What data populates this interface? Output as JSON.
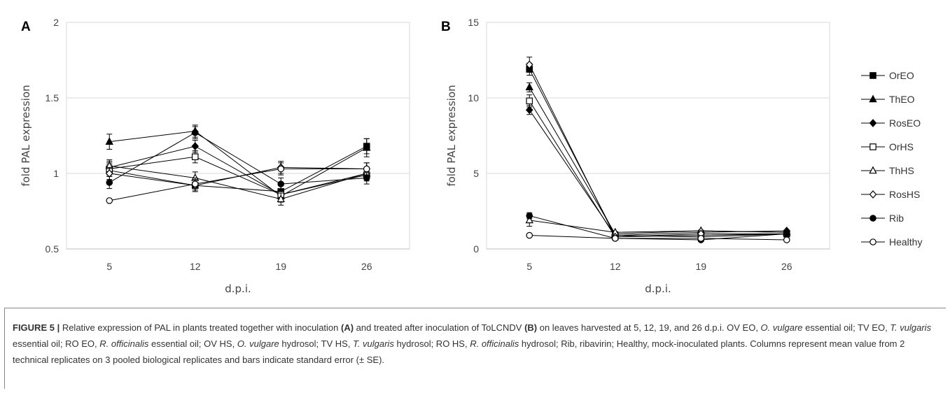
{
  "chart_data": [
    {
      "panel_label": "A",
      "type": "line",
      "xlabel": "d.p.i.",
      "ylabel": "fold PAL expression",
      "categories": [
        "5",
        "12",
        "19",
        "26"
      ],
      "ylim": [
        0.5,
        2
      ],
      "yticks": [
        "0.5",
        "1",
        "1.5",
        "2"
      ],
      "grid": true,
      "series": [
        {
          "name": "OrEO",
          "marker": "square-filled",
          "values": [
            1.02,
            0.92,
            0.88,
            1.18
          ],
          "errors": [
            0.04,
            0.04,
            0.04,
            0.05
          ]
        },
        {
          "name": "ThEO",
          "marker": "triangle-filled",
          "values": [
            1.21,
            1.28,
            0.85,
            1.17
          ],
          "errors": [
            0.05,
            0.04,
            0.04,
            0.06
          ]
        },
        {
          "name": "RosEO",
          "marker": "diamond-filled",
          "values": [
            1.04,
            1.18,
            0.86,
            1.0
          ],
          "errors": [
            0.04,
            0.04,
            0.03,
            0.04
          ]
        },
        {
          "name": "OrHS",
          "marker": "square-open",
          "values": [
            1.03,
            1.11,
            0.86,
            0.99
          ],
          "errors": [
            0.04,
            0.04,
            0.03,
            0.04
          ]
        },
        {
          "name": "ThHS",
          "marker": "triangle-open",
          "values": [
            1.05,
            0.97,
            0.83,
            1.0
          ],
          "errors": [
            0.04,
            0.04,
            0.04,
            0.04
          ]
        },
        {
          "name": "RosHS",
          "marker": "diamond-open",
          "values": [
            1.0,
            0.92,
            1.04,
            1.03
          ],
          "errors": [
            0.04,
            0.04,
            0.04,
            0.04
          ]
        },
        {
          "name": "Rib",
          "marker": "circle-filled",
          "values": [
            0.94,
            1.27,
            0.93,
            0.97
          ],
          "errors": [
            0.04,
            0.04,
            0.04,
            0.04
          ]
        },
        {
          "name": "Healthy",
          "marker": "circle-open",
          "values": [
            0.82,
            0.93,
            1.03,
            1.03
          ],
          "errors": [
            0.0,
            0.04,
            0.04,
            0.04
          ]
        }
      ]
    },
    {
      "panel_label": "B",
      "type": "line",
      "xlabel": "d.p.i.",
      "ylabel": "fold PAL expression",
      "categories": [
        "5",
        "12",
        "19",
        "26"
      ],
      "ylim": [
        0,
        15
      ],
      "yticks": [
        "0",
        "5",
        "10",
        "15"
      ],
      "grid": true,
      "legend": "right",
      "series": [
        {
          "name": "OrEO",
          "marker": "square-filled",
          "values": [
            11.9,
            0.9,
            0.8,
            1.0
          ],
          "errors": [
            0.4,
            0.05,
            0.05,
            0.05
          ]
        },
        {
          "name": "ThEO",
          "marker": "triangle-filled",
          "values": [
            10.7,
            1.0,
            1.2,
            1.1
          ],
          "errors": [
            0.3,
            0.05,
            0.05,
            0.05
          ]
        },
        {
          "name": "RosEO",
          "marker": "diamond-filled",
          "values": [
            9.2,
            0.9,
            1.1,
            1.2
          ],
          "errors": [
            0.3,
            0.05,
            0.05,
            0.05
          ]
        },
        {
          "name": "OrHS",
          "marker": "square-open",
          "values": [
            9.8,
            0.8,
            0.9,
            1.0
          ],
          "errors": [
            0.4,
            0.05,
            0.05,
            0.05
          ]
        },
        {
          "name": "ThHS",
          "marker": "triangle-open",
          "values": [
            1.9,
            1.1,
            1.2,
            1.1
          ],
          "errors": [
            0.4,
            0.05,
            0.05,
            0.05
          ]
        },
        {
          "name": "RosHS",
          "marker": "diamond-open",
          "values": [
            12.2,
            0.8,
            1.0,
            1.0
          ],
          "errors": [
            0.5,
            0.05,
            0.05,
            0.05
          ]
        },
        {
          "name": "Rib",
          "marker": "circle-filled",
          "values": [
            2.2,
            0.7,
            0.6,
            1.0
          ],
          "errors": [
            0.2,
            0.05,
            0.05,
            0.05
          ]
        },
        {
          "name": "Healthy",
          "marker": "circle-open",
          "values": [
            0.9,
            0.7,
            0.7,
            0.6
          ],
          "errors": [
            0.05,
            0.05,
            0.05,
            0.05
          ]
        }
      ]
    }
  ],
  "caption": {
    "figure_label": "FIGURE 5 |",
    "parts": [
      {
        "t": " Relative expression of PAL in plants treated together with inoculation "
      },
      {
        "t": "(A)",
        "s": "b"
      },
      {
        "t": " and treated after inoculation of ToLCNDV "
      },
      {
        "t": "(B)",
        "s": "b"
      },
      {
        "t": " on leaves harvested at 5, 12, 19, and 26 d.p.i. OV EO, "
      },
      {
        "t": "O. vulgare",
        "s": "i"
      },
      {
        "t": " essential oil; TV EO, "
      },
      {
        "t": "T. vulgaris",
        "s": "i"
      },
      {
        "t": " essential oil; RO EO, "
      },
      {
        "t": "R. officinalis",
        "s": "i"
      },
      {
        "t": " essential oil; OV HS, "
      },
      {
        "t": "O. vulgare",
        "s": "i"
      },
      {
        "t": " hydrosol; TV HS, "
      },
      {
        "t": "T. vulgaris",
        "s": "i"
      },
      {
        "t": " hydrosol; RO HS, "
      },
      {
        "t": "R. officinalis",
        "s": "i"
      },
      {
        "t": " hydrosol; Rib, ribavirin; Healthy, mock-inoculated plants. Columns represent mean value from 2 technical replicates on 3 pooled biological replicates and bars indicate standard error (± SE)."
      }
    ]
  }
}
